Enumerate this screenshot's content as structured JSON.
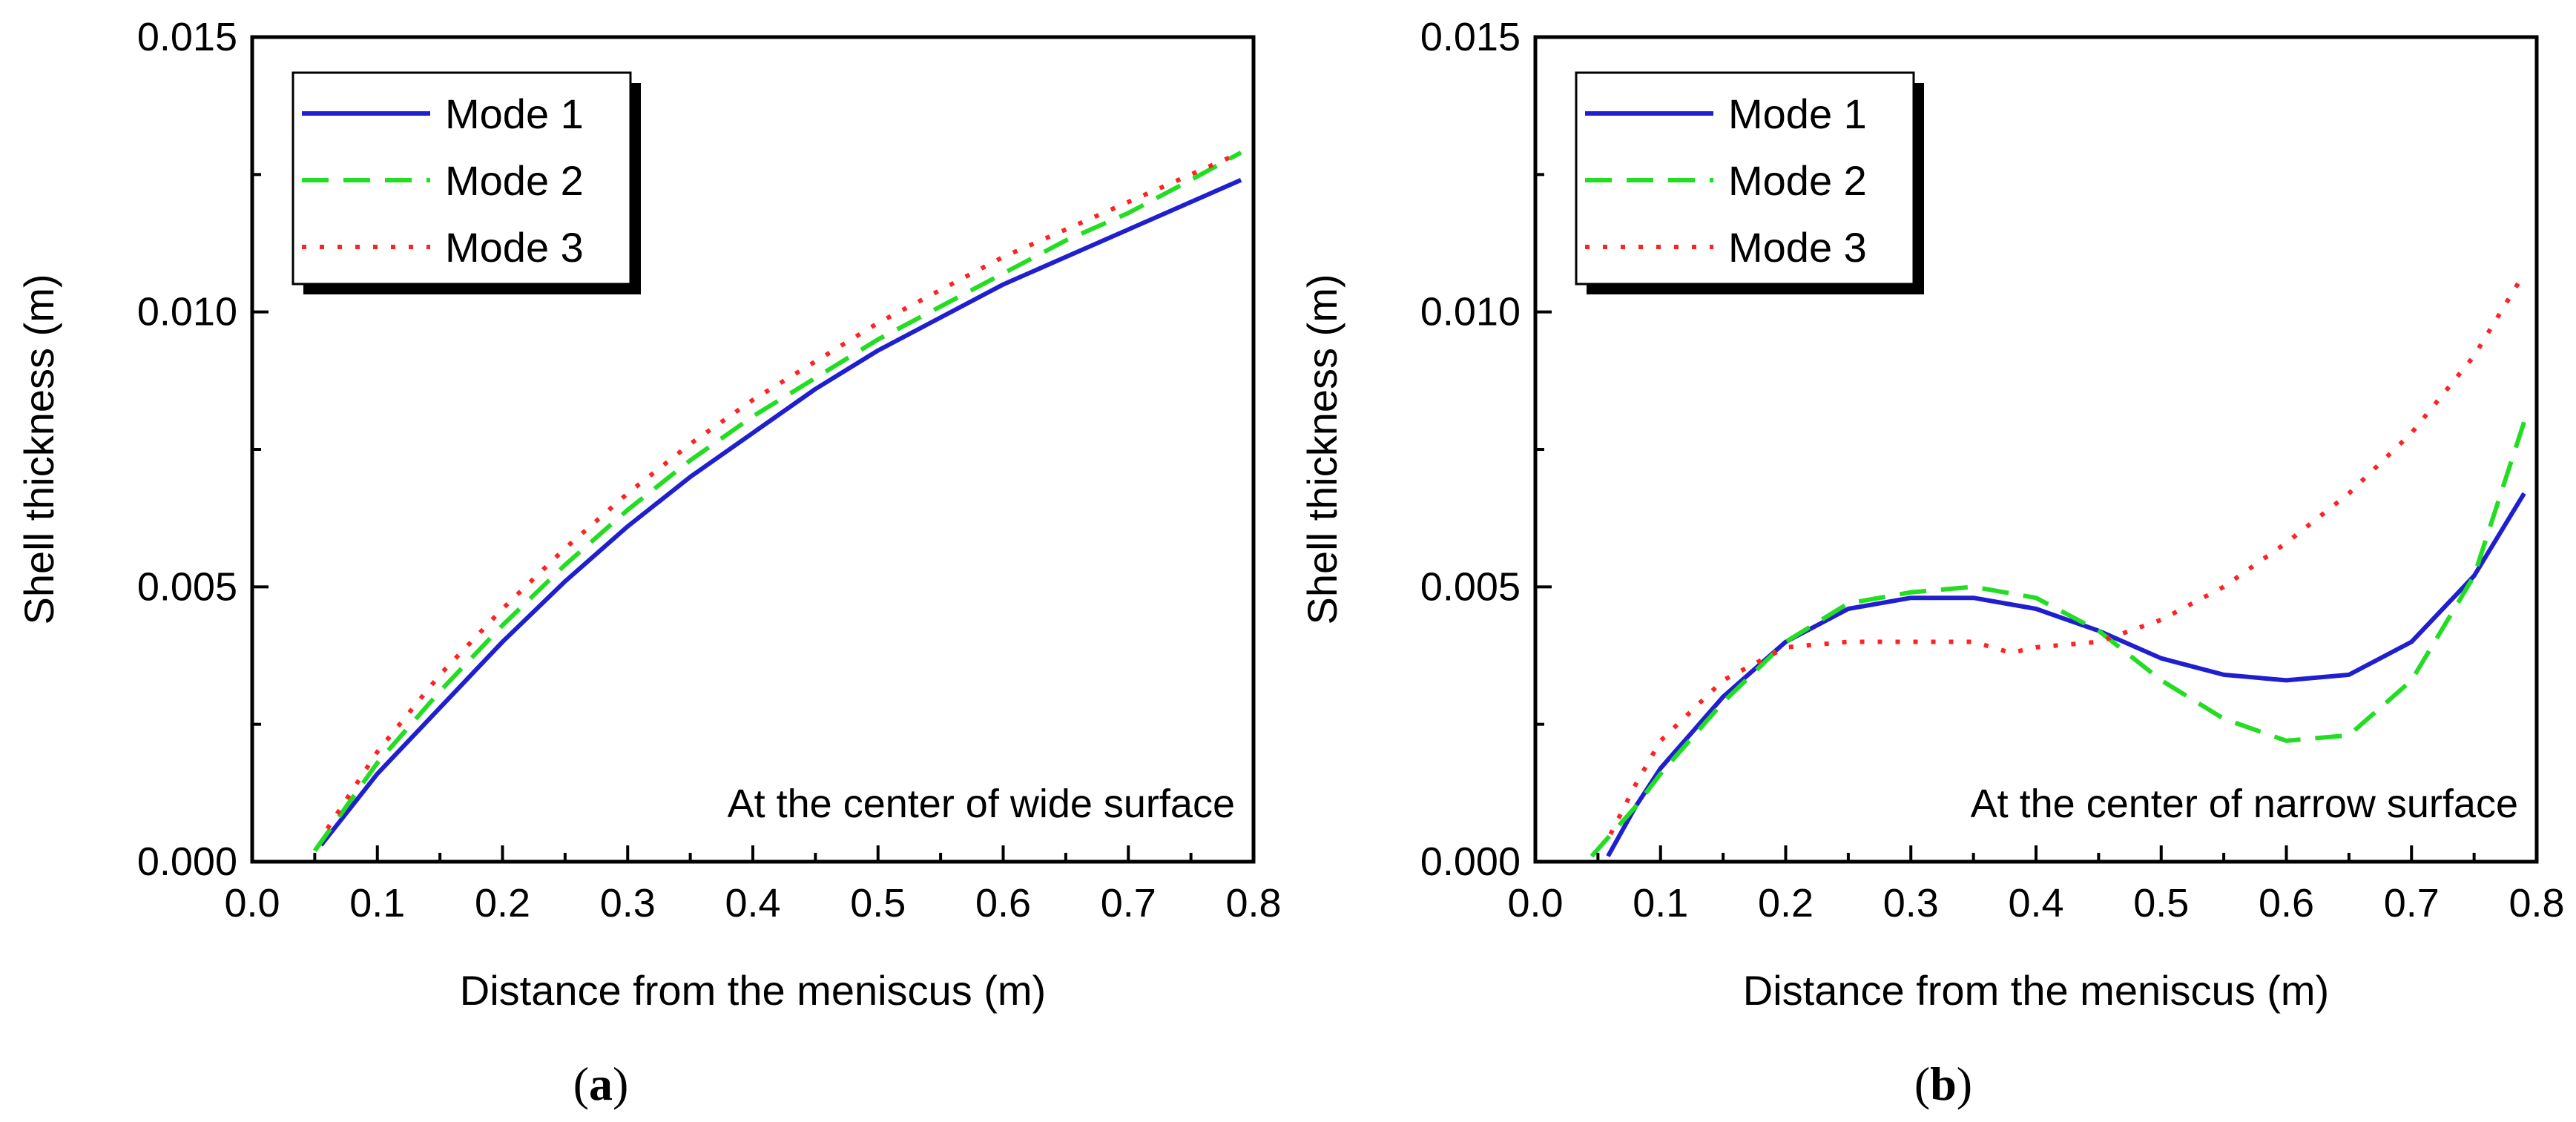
{
  "chart_data": [
    {
      "type": "line",
      "caption": "a",
      "xlabel": "Distance from the meniscus (m)",
      "ylabel": "Shell thickness (m)",
      "annotation": "At the center of wide surface",
      "xlim": [
        0.0,
        0.8
      ],
      "ylim": [
        0.0,
        0.015
      ],
      "xticks": [
        "0.0",
        "0.1",
        "0.2",
        "0.3",
        "0.4",
        "0.5",
        "0.6",
        "0.7",
        "0.8"
      ],
      "yticks": [
        "0.000",
        "0.005",
        "0.010",
        "0.015"
      ],
      "legend_position": "top-left",
      "series": [
        {
          "name": "Mode 1",
          "color": "#1f1fcf",
          "style": "solid",
          "x": [
            0.055,
            0.1,
            0.15,
            0.2,
            0.25,
            0.3,
            0.35,
            0.4,
            0.45,
            0.5,
            0.55,
            0.6,
            0.65,
            0.7,
            0.75,
            0.79
          ],
          "y": [
            0.0003,
            0.0016,
            0.0028,
            0.004,
            0.0051,
            0.0061,
            0.007,
            0.0078,
            0.0086,
            0.0093,
            0.0099,
            0.0105,
            0.011,
            0.0115,
            0.012,
            0.0124
          ]
        },
        {
          "name": "Mode 2",
          "color": "#22dd22",
          "style": "dashed",
          "x": [
            0.05,
            0.1,
            0.15,
            0.2,
            0.25,
            0.3,
            0.35,
            0.4,
            0.45,
            0.5,
            0.55,
            0.6,
            0.65,
            0.7,
            0.75,
            0.79
          ],
          "y": [
            0.0002,
            0.0018,
            0.0031,
            0.0043,
            0.0054,
            0.0064,
            0.0073,
            0.0081,
            0.0088,
            0.0095,
            0.0101,
            0.0107,
            0.0113,
            0.0118,
            0.0124,
            0.0129
          ]
        },
        {
          "name": "Mode 3",
          "color": "#ff2222",
          "style": "dotted",
          "x": [
            0.06,
            0.1,
            0.15,
            0.2,
            0.25,
            0.3,
            0.35,
            0.4,
            0.45,
            0.5,
            0.55,
            0.6,
            0.65,
            0.7,
            0.75,
            0.79
          ],
          "y": [
            0.0006,
            0.002,
            0.0034,
            0.0046,
            0.0057,
            0.0067,
            0.0076,
            0.0084,
            0.0091,
            0.0098,
            0.0104,
            0.011,
            0.0115,
            0.012,
            0.0125,
            0.0129
          ]
        }
      ]
    },
    {
      "type": "line",
      "caption": "b",
      "xlabel": "Distance from the meniscus (m)",
      "ylabel": "Shell thickness (m)",
      "annotation": "At the center of narrow surface",
      "xlim": [
        0.0,
        0.8
      ],
      "ylim": [
        0.0,
        0.015
      ],
      "xticks": [
        "0.0",
        "0.1",
        "0.2",
        "0.3",
        "0.4",
        "0.5",
        "0.6",
        "0.7",
        "0.8"
      ],
      "yticks": [
        "0.000",
        "0.005",
        "0.010",
        "0.015"
      ],
      "legend_position": "top-left",
      "series": [
        {
          "name": "Mode 1",
          "color": "#1f1fcf",
          "style": "solid",
          "x": [
            0.058,
            0.08,
            0.1,
            0.15,
            0.2,
            0.25,
            0.3,
            0.35,
            0.4,
            0.45,
            0.5,
            0.55,
            0.6,
            0.65,
            0.7,
            0.75,
            0.79
          ],
          "y": [
            0.0001,
            0.001,
            0.0017,
            0.003,
            0.004,
            0.0046,
            0.0048,
            0.0048,
            0.0046,
            0.0042,
            0.0037,
            0.0034,
            0.0033,
            0.0034,
            0.004,
            0.0052,
            0.0067
          ]
        },
        {
          "name": "Mode 2",
          "color": "#22dd22",
          "style": "dashed",
          "x": [
            0.045,
            0.08,
            0.1,
            0.15,
            0.2,
            0.25,
            0.3,
            0.35,
            0.4,
            0.45,
            0.5,
            0.55,
            0.6,
            0.65,
            0.7,
            0.75,
            0.79
          ],
          "y": [
            0.0001,
            0.001,
            0.0016,
            0.0029,
            0.004,
            0.0047,
            0.0049,
            0.005,
            0.0048,
            0.0042,
            0.0033,
            0.0026,
            0.0022,
            0.0023,
            0.0033,
            0.0052,
            0.008
          ]
        },
        {
          "name": "Mode 3",
          "color": "#ff2222",
          "style": "dotted",
          "x": [
            0.06,
            0.08,
            0.1,
            0.15,
            0.2,
            0.25,
            0.3,
            0.35,
            0.38,
            0.4,
            0.45,
            0.5,
            0.55,
            0.6,
            0.65,
            0.7,
            0.75,
            0.79
          ],
          "y": [
            0.0005,
            0.0014,
            0.0022,
            0.0033,
            0.0039,
            0.004,
            0.004,
            0.004,
            0.0038,
            0.0039,
            0.004,
            0.0044,
            0.005,
            0.0058,
            0.0067,
            0.0078,
            0.0092,
            0.0107
          ]
        }
      ]
    }
  ]
}
